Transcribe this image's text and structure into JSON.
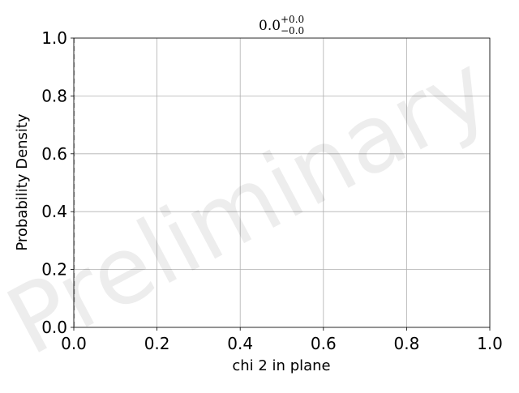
{
  "chart_data": {
    "type": "line",
    "title": {
      "value": "0.0",
      "upper": "+0.0",
      "lower": "−0.0"
    },
    "xlabel": "chi 2 in plane",
    "ylabel": "Probability Density",
    "xlim": [
      0.0,
      1.0
    ],
    "ylim": [
      0.0,
      1.0
    ],
    "xticks": [
      "0.0",
      "0.2",
      "0.4",
      "0.6",
      "0.8",
      "1.0"
    ],
    "yticks": [
      "0.0",
      "0.2",
      "0.4",
      "0.6",
      "0.8",
      "1.0"
    ],
    "grid": true,
    "series": [],
    "reference_line": {
      "x": 0.0,
      "style": "dashed"
    }
  },
  "watermark": "Preliminary",
  "colors": {
    "grid": "#b0b0b0",
    "spine": "#000000",
    "reference_line": "#aaaaaa"
  }
}
